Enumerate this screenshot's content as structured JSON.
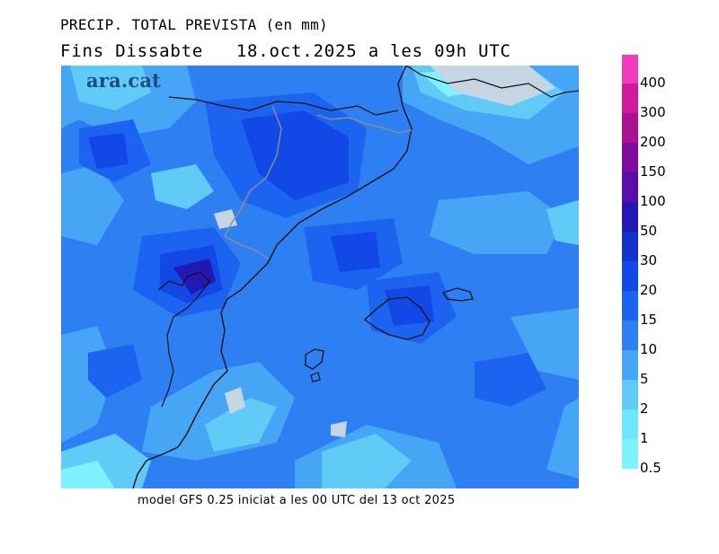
{
  "title": "PRECIP. TOTAL PREVISTA (en mm)",
  "subtitle": "Fins Dissabte   18.oct.2025 a les 09h UTC",
  "footer": "model GFS 0.25 iniciat a les 00 UTC del 13 oct 2025",
  "logo_text": "ara.cat",
  "legend": {
    "levels": [
      {
        "label": "0.5",
        "color": "#7ef3ff"
      },
      {
        "label": "1",
        "color": "#6fe6fb"
      },
      {
        "label": "2",
        "color": "#5fcbf6"
      },
      {
        "label": "5",
        "color": "#46a6f5"
      },
      {
        "label": "10",
        "color": "#2e80f2"
      },
      {
        "label": "15",
        "color": "#1c64f0"
      },
      {
        "label": "20",
        "color": "#1248e6"
      },
      {
        "label": "30",
        "color": "#1233cc"
      },
      {
        "label": "50",
        "color": "#2418b4"
      },
      {
        "label": "100",
        "color": "#5a0da8"
      },
      {
        "label": "150",
        "color": "#7e0aa0"
      },
      {
        "label": "200",
        "color": "#a9128e"
      },
      {
        "label": "300",
        "color": "#d01a9e"
      },
      {
        "label": "400",
        "color": "#f03cbe"
      }
    ]
  },
  "colors": {
    "base": "#2e80f2",
    "light": "#46a6f5",
    "lighter": "#5fcbf6",
    "lightest": "#7ef3ff",
    "dark": "#1c64f0",
    "darker": "#1248e6",
    "darkest": "#2418b4",
    "dry": "#c5d5e2",
    "coast": "#111111",
    "border": "#8f8f8f"
  }
}
